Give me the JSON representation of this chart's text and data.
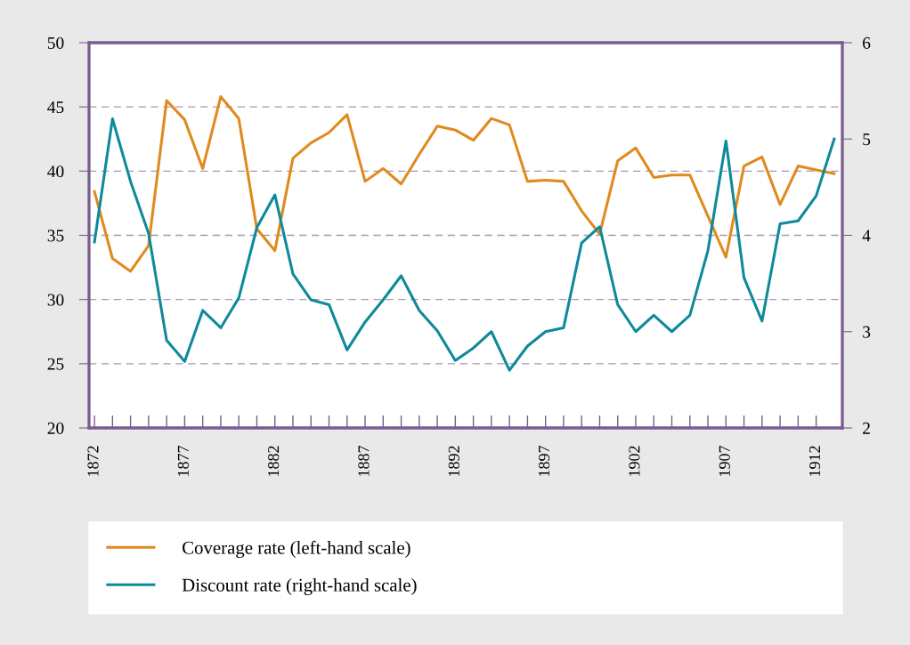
{
  "chart_data": {
    "type": "line",
    "x": [
      1872,
      1873,
      1874,
      1875,
      1876,
      1877,
      1878,
      1879,
      1880,
      1881,
      1882,
      1883,
      1884,
      1885,
      1886,
      1887,
      1888,
      1889,
      1890,
      1891,
      1892,
      1893,
      1894,
      1895,
      1896,
      1897,
      1898,
      1899,
      1900,
      1901,
      1902,
      1903,
      1904,
      1905,
      1906,
      1907,
      1908,
      1909,
      1910,
      1911,
      1912,
      1913
    ],
    "series": [
      {
        "name": "Coverage rate (left-hand scale)",
        "color": "#e08a1e",
        "values": [
          38.4,
          33.2,
          32.2,
          34.2,
          45.5,
          44.0,
          40.2,
          45.8,
          44.1,
          35.5,
          33.8,
          41.0,
          42.2,
          43.0,
          44.4,
          39.2,
          40.2,
          39.0,
          41.3,
          43.5,
          43.2,
          42.4,
          44.1,
          43.6,
          39.2,
          39.3,
          39.2,
          36.9,
          35.1,
          40.8,
          41.8,
          39.5,
          39.7,
          39.7,
          36.5,
          33.3,
          40.4,
          41.1,
          37.4,
          40.4,
          40.1,
          39.8
        ]
      },
      {
        "name": "Discount rate (right-hand scale)",
        "color": "#0e8a9a",
        "axis": "y2",
        "values": [
          3.93,
          5.21,
          4.56,
          4.02,
          2.91,
          2.69,
          3.22,
          3.04,
          3.35,
          4.08,
          4.42,
          3.6,
          3.33,
          3.28,
          2.81,
          3.1,
          3.33,
          3.58,
          3.22,
          3.01,
          2.7,
          2.83,
          3.0,
          2.6,
          2.85,
          3.0,
          3.04,
          3.92,
          4.09,
          3.28,
          3.0,
          3.17,
          3.0,
          3.17,
          3.84,
          4.98,
          3.56,
          3.11,
          4.12,
          4.15,
          4.41,
          5.0
        ]
      }
    ],
    "xlim": [
      1871.7,
      1913.45
    ],
    "xticks": [
      1872,
      {
        "value": 1873,
        "label": null
      },
      {
        "value": 1874,
        "label": null
      },
      {
        "value": 1875,
        "label": null
      },
      {
        "value": 1876,
        "label": null
      },
      1877,
      {
        "value": 1878,
        "label": null
      },
      {
        "value": 1879,
        "label": null
      },
      {
        "value": 1880,
        "label": null
      },
      {
        "value": 1881,
        "label": null
      },
      1882,
      {
        "value": 1883,
        "label": null
      },
      {
        "value": 1884,
        "label": null
      },
      {
        "value": 1885,
        "label": null
      },
      {
        "value": 1886,
        "label": null
      },
      1887,
      {
        "value": 1888,
        "label": null
      },
      {
        "value": 1889,
        "label": null
      },
      {
        "value": 1890,
        "label": null
      },
      {
        "value": 1891,
        "label": null
      },
      1892,
      {
        "value": 1893,
        "label": null
      },
      {
        "value": 1894,
        "label": null
      },
      {
        "value": 1895,
        "label": null
      },
      {
        "value": 1896,
        "label": null
      },
      1897,
      {
        "value": 1898,
        "label": null
      },
      {
        "value": 1899,
        "label": null
      },
      {
        "value": 1900,
        "label": null
      },
      {
        "value": 1901,
        "label": null
      },
      1902,
      {
        "value": 1903,
        "label": null
      },
      {
        "value": 1904,
        "label": null
      },
      {
        "value": 1905,
        "label": null
      },
      {
        "value": 1906,
        "label": null
      },
      1907,
      {
        "value": 1908,
        "label": null
      },
      {
        "value": 1909,
        "label": null
      },
      {
        "value": 1910,
        "label": null
      },
      {
        "value": 1911,
        "label": null
      },
      1912
    ],
    "ylim": [
      20,
      50
    ],
    "yticks": [
      20,
      25,
      30,
      35,
      40,
      45,
      50
    ],
    "y2lim": [
      2,
      6
    ],
    "y2ticks": [
      2,
      3,
      4,
      5,
      6
    ],
    "grid": "y",
    "legend": "bottom",
    "marker": "none",
    "line_style": "solid"
  }
}
